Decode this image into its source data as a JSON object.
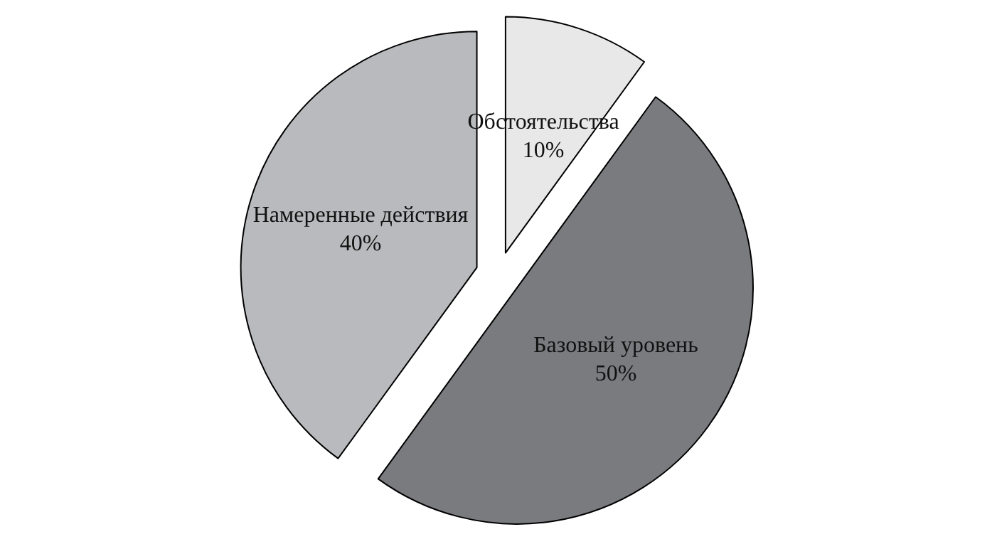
{
  "chart_data": {
    "type": "pie",
    "categories": [
      "Обстоятельства",
      "Базовый уровень",
      "Намеренные действия"
    ],
    "values": [
      10,
      50,
      40
    ],
    "value_labels": [
      "10%",
      "50%",
      "40%"
    ],
    "colors": [
      "#e8e8e9",
      "#7a7b7f",
      "#b9babd"
    ],
    "legend": false
  }
}
